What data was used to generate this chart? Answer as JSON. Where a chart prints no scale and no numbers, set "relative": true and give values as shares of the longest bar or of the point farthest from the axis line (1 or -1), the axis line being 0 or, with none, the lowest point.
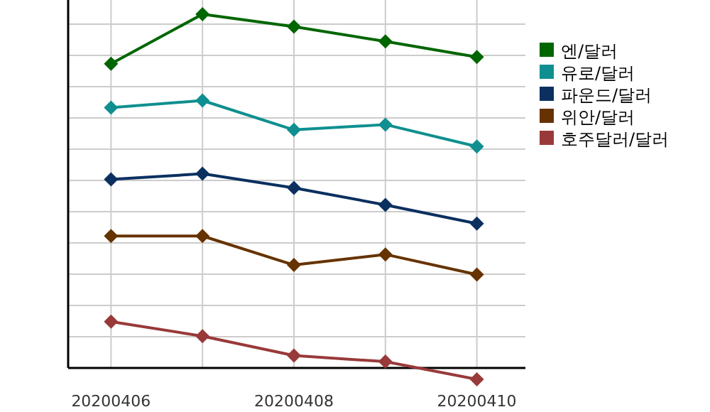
{
  "chart_data": {
    "type": "line",
    "relative": true,
    "categories": [
      "20200406",
      null,
      "20200408",
      null,
      "20200410"
    ],
    "grid": true,
    "legend": "top right",
    "marker": "diamond",
    "line_style": "solid",
    "series": [
      {
        "name": "엔/달러",
        "color": "#006600",
        "values": [
          0.86,
          1,
          0.965,
          0.923,
          0.879
        ]
      },
      {
        "name": "유로/달러",
        "color": "#0f8f8f",
        "values": [
          0.736,
          0.756,
          0.673,
          0.688,
          0.626
        ]
      },
      {
        "name": "파운드/달러",
        "color": "#0b3060",
        "values": [
          0.533,
          0.549,
          0.509,
          0.461,
          0.408
        ]
      },
      {
        "name": "위안/달러",
        "color": "#663300",
        "values": [
          0.373,
          0.373,
          0.291,
          0.321,
          0.264
        ]
      },
      {
        "name": "호주달러/달러",
        "color": "#993a3a",
        "values": [
          0.131,
          0.09,
          0.035,
          0.018,
          -0.032
        ]
      }
    ]
  }
}
